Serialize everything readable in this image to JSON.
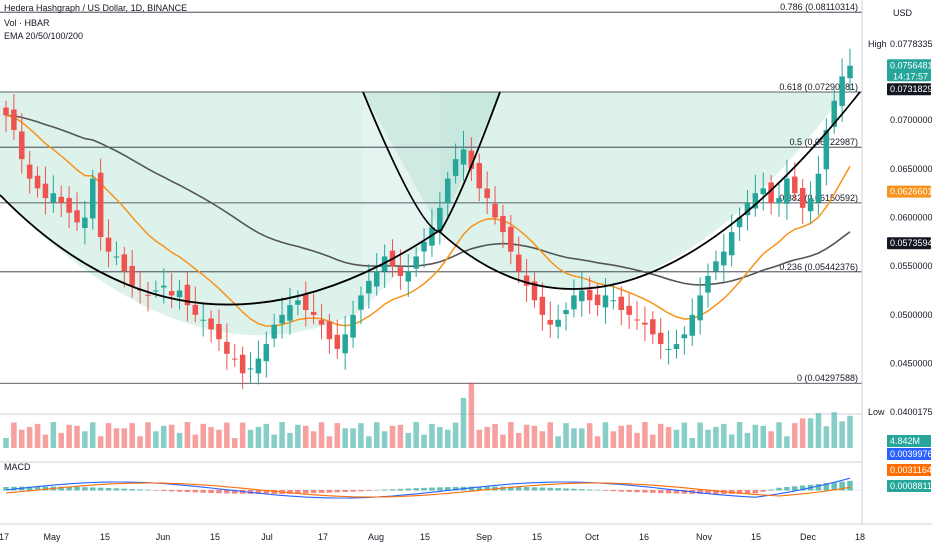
{
  "header": {
    "title": "Hedera Hashgraph / US Dollar, 1D, BINANCE",
    "vol_label": "Vol · HBAR",
    "ema_label": "EMA 20/50/100/200",
    "currency": "USD",
    "macd_label": "MACD"
  },
  "colors": {
    "up": "#26a69a",
    "down": "#ef5350",
    "ema_fast": "#f7931a",
    "ema_slow": "#555555",
    "pattern_fill": "#d3ede6",
    "macd_line": "#2962ff",
    "signal_line": "#ff6d00"
  },
  "chart_data": {
    "type": "candlestick",
    "title": "Hedera Hashgraph / US Dollar, 1D, BINANCE",
    "ylim": [
      0.04,
      0.082
    ],
    "x_ticks": [
      "17",
      "May",
      "15",
      "Jun",
      "15",
      "Jul",
      "17",
      "Aug",
      "15",
      "Sep",
      "15",
      "Oct",
      "16",
      "Nov",
      "15",
      "Dec",
      "18"
    ],
    "fib_levels": [
      {
        "label": "0.786 (0.08110314)",
        "value": 0.08110314
      },
      {
        "label": "0.618 (0.07290381)",
        "value": 0.07290381
      },
      {
        "label": "0.5 (0.06722987)",
        "value": 0.06722987
      },
      {
        "label": "0.382 (0.06150592)",
        "value": 0.06150592
      },
      {
        "label": "0.236 (0.05442376)",
        "value": 0.05442376
      },
      {
        "label": "0 (0.04297588)",
        "value": 0.04297588
      }
    ],
    "price_axis_ticks": [
      "0.07000000",
      "0.06500000",
      "0.06000000",
      "0.05500000",
      "0.05000000",
      "0.04500000"
    ],
    "badges": [
      {
        "text": "High",
        "value": 0.07783359,
        "label": "0.07783359",
        "style": "plain"
      },
      {
        "text": "",
        "value": 0.07564812,
        "label": "0.07564812",
        "sub": "14:17:57",
        "style": "up"
      },
      {
        "text": "",
        "value": 0.07318291,
        "label": "0.07318291",
        "style": "dark"
      },
      {
        "text": "",
        "value": 0.06266012,
        "label": "0.06266012",
        "style": "orange"
      },
      {
        "text": "",
        "value": 0.05735944,
        "label": "0.05735944",
        "style": "dark"
      },
      {
        "text": "Low",
        "value": 0.04001753,
        "label": "0.04001753",
        "style": "plain"
      }
    ],
    "volume_label": "4.842M",
    "macd_values": [
      {
        "label": "0.00399761",
        "kind": "macd"
      },
      {
        "label": "0.00311644",
        "kind": "signal"
      },
      {
        "label": "0.00088117",
        "kind": "hist"
      }
    ],
    "series": [
      {
        "name": "EMA 20",
        "kind": "ema_fast"
      },
      {
        "name": "EMA 200",
        "kind": "ema_slow"
      }
    ],
    "ohlc_points": [
      0.0705,
      0.069,
      0.066,
      0.064,
      0.063,
      0.062,
      0.0625,
      0.0615,
      0.0605,
      0.0595,
      0.06,
      0.064,
      0.058,
      0.0565,
      0.056,
      0.0545,
      0.053,
      0.0525,
      0.052,
      0.0525,
      0.053,
      0.052,
      0.0525,
      0.051,
      0.05,
      0.0495,
      0.0485,
      0.0475,
      0.046,
      0.0455,
      0.044,
      0.0445,
      0.0455,
      0.047,
      0.049,
      0.05,
      0.051,
      0.0515,
      0.0505,
      0.05,
      0.049,
      0.0475,
      0.0465,
      0.048,
      0.05,
      0.052,
      0.0535,
      0.0545,
      0.056,
      0.055,
      0.054,
      0.0545,
      0.056,
      0.0575,
      0.059,
      0.061,
      0.064,
      0.066,
      0.067,
      0.065,
      0.063,
      0.062,
      0.06,
      0.0585,
      0.0565,
      0.0545,
      0.053,
      0.0515,
      0.05,
      0.049,
      0.0495,
      0.0505,
      0.052,
      0.0525,
      0.0515,
      0.051,
      0.052,
      0.0515,
      0.0505,
      0.05,
      0.0495,
      0.049,
      0.048,
      0.047,
      0.0465,
      0.047,
      0.048,
      0.05,
      0.052,
      0.054,
      0.0555,
      0.0565,
      0.0585,
      0.06,
      0.0615,
      0.0625,
      0.063,
      0.0615,
      0.062,
      0.064,
      0.0625,
      0.061,
      0.062,
      0.0645,
      0.069,
      0.072,
      0.0745,
      0.0756
    ]
  }
}
